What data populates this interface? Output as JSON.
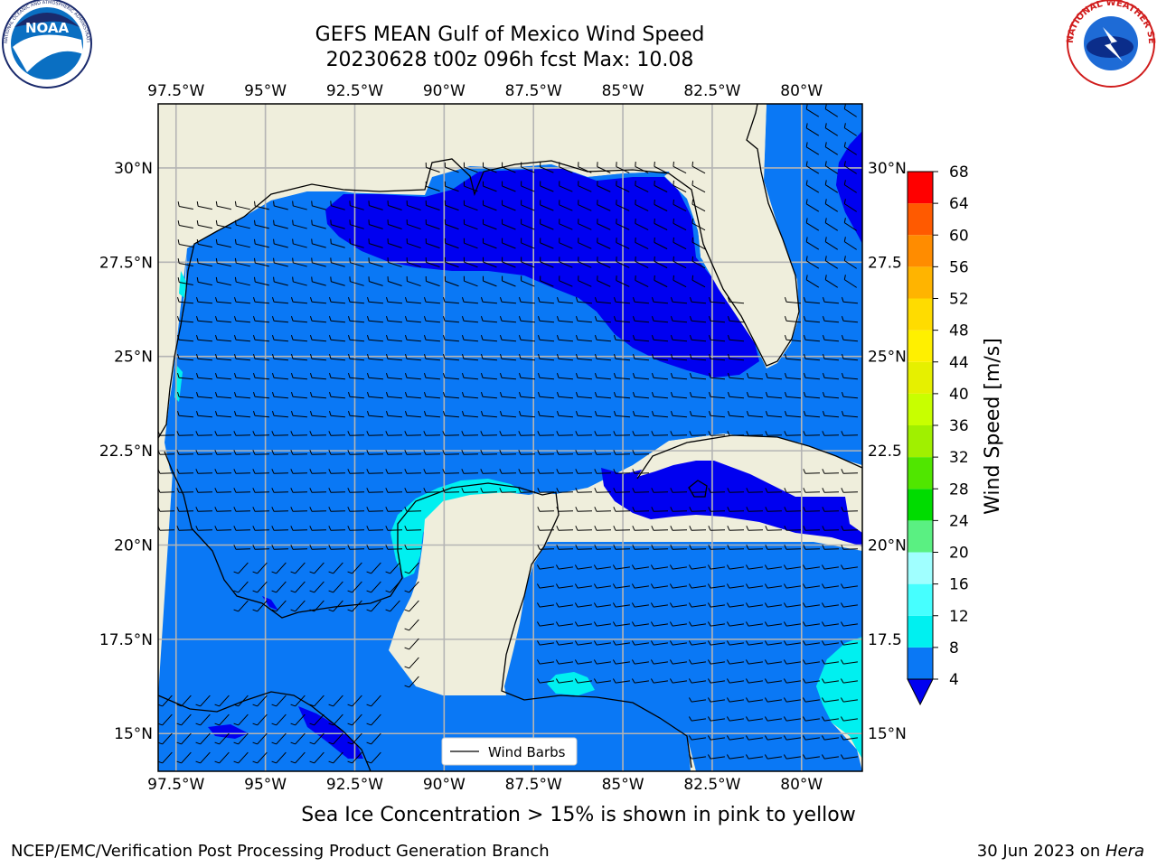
{
  "title": {
    "line1": "GEFS MEAN Gulf of Mexico Wind Speed",
    "line2": "20230628 t00z 096h fcst   Max: 10.08"
  },
  "subtitle": "Sea Ice Concentration > 15% is shown in pink to yellow",
  "footer": {
    "left": "NCEP/EMC/Verification Post Processing Product Generation Branch",
    "date": "30 Jun 2023 on ",
    "host": "Hera"
  },
  "logos": {
    "noaa": "NOAA",
    "nws": "NATIONAL WEATHER SERVICE",
    "noaa_ring": "NATIONAL OCEANIC AND ATMOSPHERIC ADMINISTRATION · U.S. DEPARTMENT OF COMMERCE"
  },
  "legend": {
    "label": "Wind Barbs"
  },
  "map": {
    "lon_range": [
      -98.0,
      -78.3
    ],
    "lat_range": [
      14.0,
      31.7
    ],
    "lon_ticks": [
      {
        "value": -97.5,
        "label": "97.5°W"
      },
      {
        "value": -95.0,
        "label": "95°W"
      },
      {
        "value": -92.5,
        "label": "92.5°W"
      },
      {
        "value": -90.0,
        "label": "90°W"
      },
      {
        "value": -87.5,
        "label": "87.5°W"
      },
      {
        "value": -85.0,
        "label": "85°W"
      },
      {
        "value": -82.5,
        "label": "82.5°W"
      },
      {
        "value": -80.0,
        "label": "80°W"
      }
    ],
    "lat_ticks": [
      {
        "value": 15.0,
        "left": "15°N",
        "right": "15°N"
      },
      {
        "value": 17.5,
        "left": "17.5°N",
        "right": "17.5"
      },
      {
        "value": 20.0,
        "left": "20°N",
        "right": "20°N"
      },
      {
        "value": 22.5,
        "left": "22.5°N",
        "right": "22.5"
      },
      {
        "value": 25.0,
        "left": "25°N",
        "right": "25°N"
      },
      {
        "value": 27.5,
        "left": "27.5°N",
        "right": "27.5"
      },
      {
        "value": 30.0,
        "left": "30°N",
        "right": "30°N"
      }
    ],
    "colors": {
      "land": "#efeedc",
      "ocean_base": "#0a78f5",
      "low": "#0000f0",
      "mid": "#00f0f0",
      "grid": "#b4b4b4"
    }
  },
  "colorbar": {
    "label": "Wind Speed [m/s]",
    "levels": [
      4,
      8,
      12,
      16,
      20,
      24,
      28,
      32,
      36,
      40,
      44,
      48,
      52,
      56,
      60,
      64,
      68
    ],
    "colors": [
      "#0a78f5",
      "#00f0f0",
      "#46ffff",
      "#a0ffff",
      "#5af082",
      "#00dc00",
      "#50e600",
      "#a0f000",
      "#c8ff00",
      "#e6f000",
      "#fff000",
      "#ffdc00",
      "#ffb400",
      "#ff8c00",
      "#ff5a00",
      "#ff0000"
    ],
    "under_color": "#0000f0"
  }
}
